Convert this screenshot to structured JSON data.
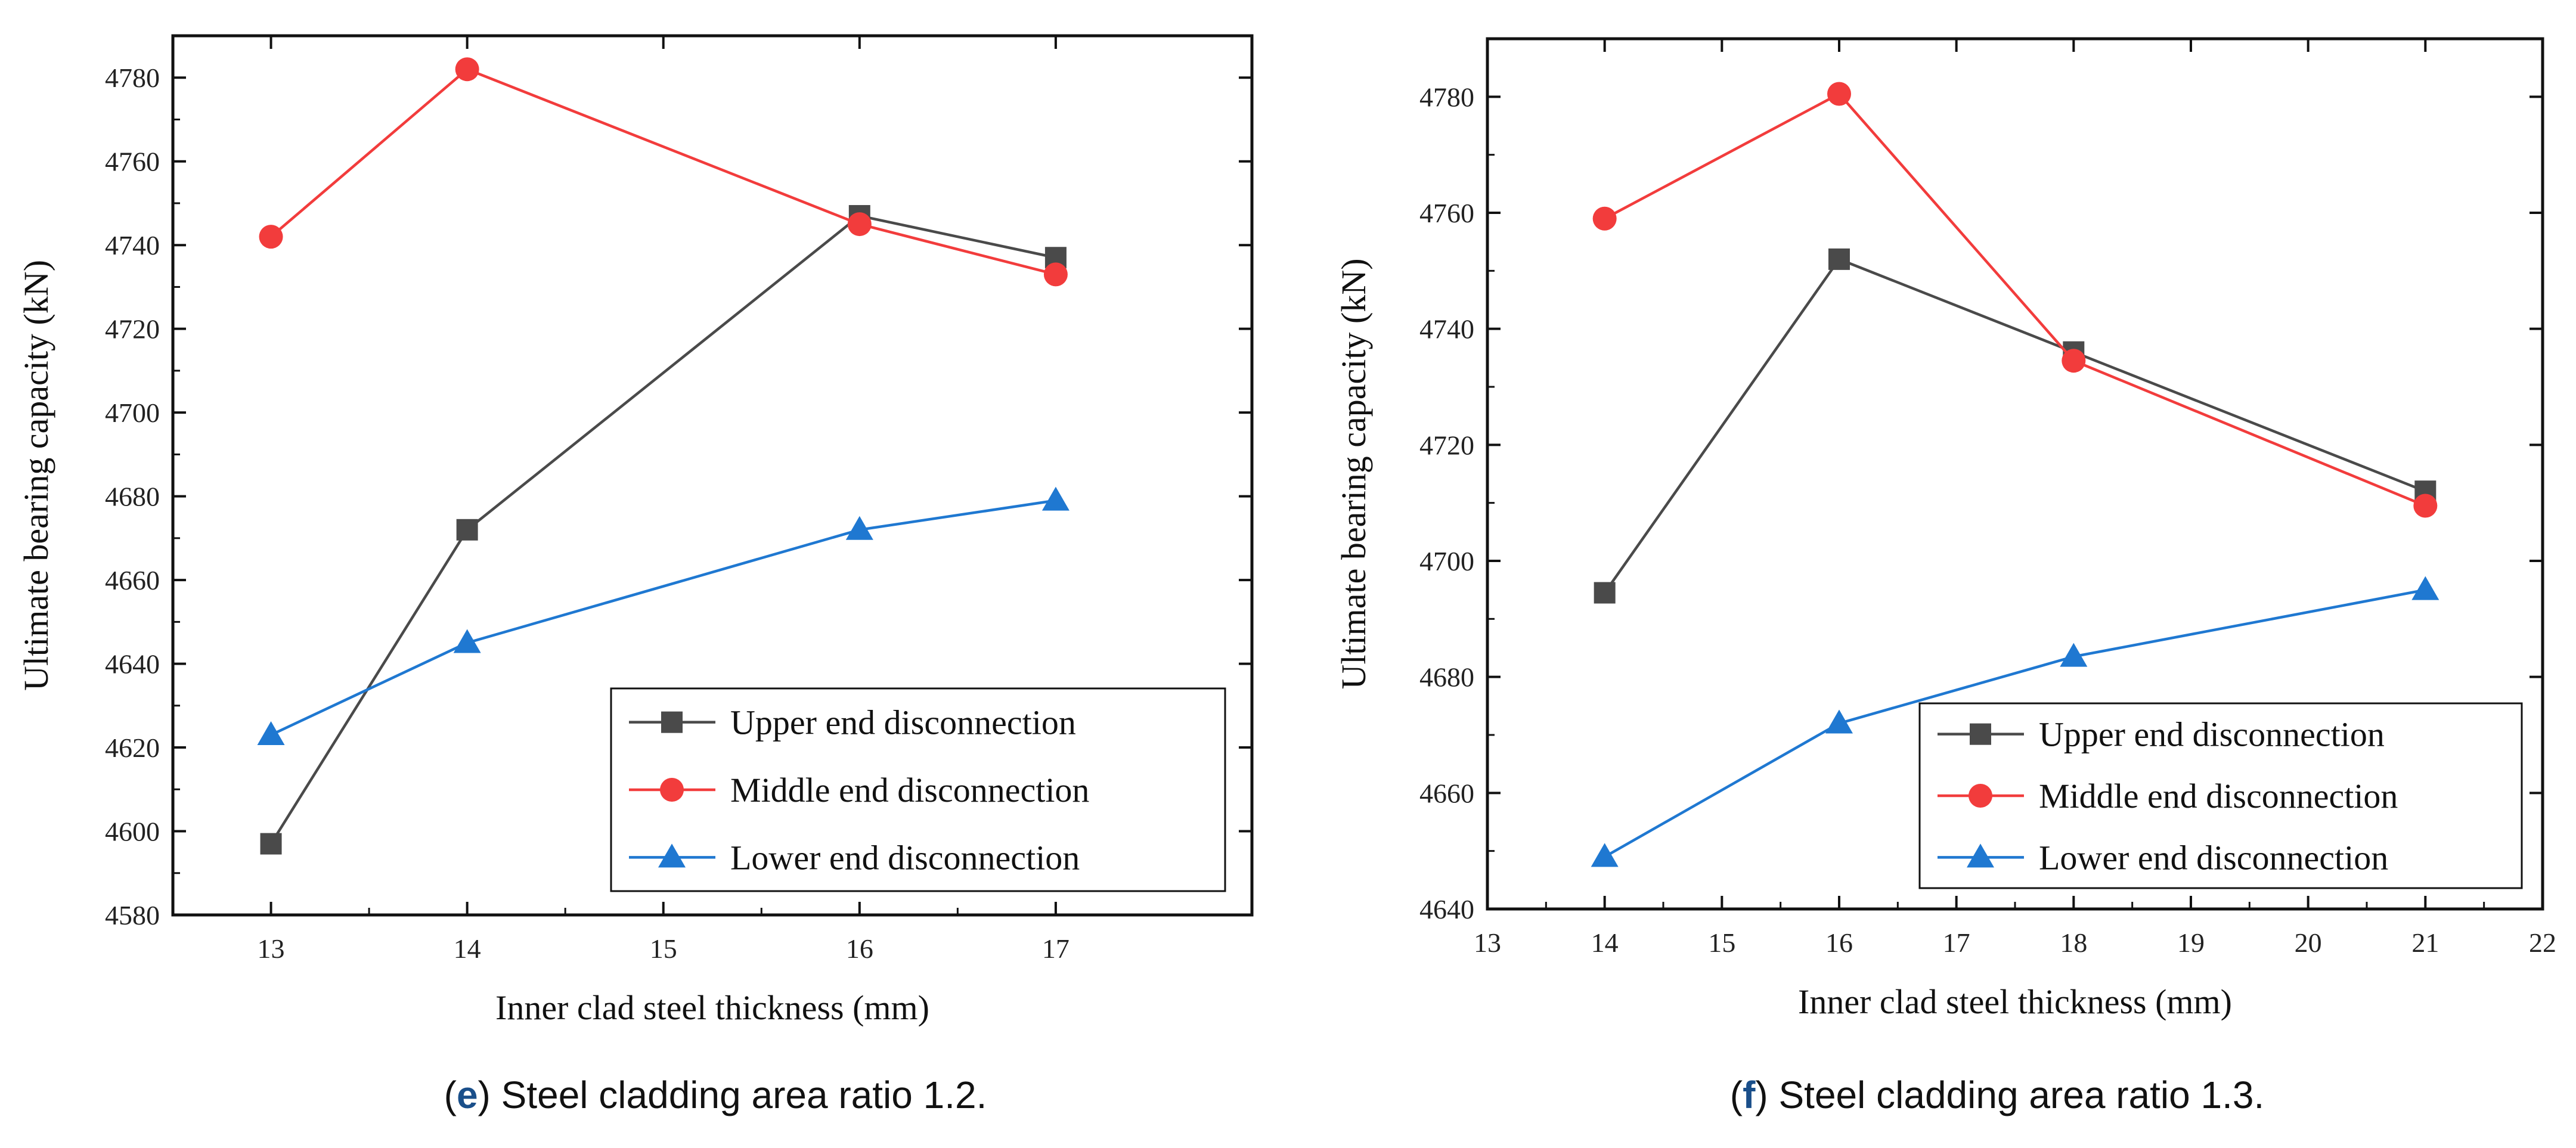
{
  "chart_data": [
    {
      "type": "line",
      "caption_letter": "e",
      "caption_text": " Steel cladding area ratio 1.2.",
      "xlabel": "Inner clad steel thickness (mm)",
      "ylabel": "Ultimate bearing capacity (kN)",
      "categories": [
        "13",
        "14",
        "15",
        "16",
        "17"
      ],
      "ylim": [
        4580,
        4790
      ],
      "yticks": [
        4580,
        4600,
        4620,
        4640,
        4660,
        4680,
        4700,
        4720,
        4740,
        4760,
        4780
      ],
      "series": [
        {
          "name": "Upper end disconnection",
          "color": "#4a4a4a",
          "marker": "square",
          "x": [
            "13",
            "14",
            "16",
            "17"
          ],
          "values": [
            4597,
            4672,
            4747,
            4737
          ]
        },
        {
          "name": "Middle end disconnection",
          "color": "#f23c3c",
          "marker": "circle",
          "x": [
            "13",
            "14",
            "16",
            "17"
          ],
          "values": [
            4742,
            4782,
            4745,
            4733
          ]
        },
        {
          "name": "Lower end disconnection",
          "color": "#1f78d1",
          "marker": "triangle",
          "x": [
            "13",
            "14",
            "16",
            "17"
          ],
          "values": [
            4623,
            4645,
            4672,
            4679
          ]
        }
      ],
      "legend_position": "bottom-right"
    },
    {
      "type": "line",
      "caption_letter": "f",
      "caption_text": " Steel cladding area ratio 1.3.",
      "xlabel": "Inner clad steel thickness (mm)",
      "ylabel": "Ultimate bearing capacity (kN)",
      "categories": [
        "13",
        "14",
        "15",
        "16",
        "17",
        "18",
        "19",
        "20",
        "21",
        "22"
      ],
      "ylim": [
        4640,
        4790
      ],
      "yticks": [
        4640,
        4660,
        4680,
        4700,
        4720,
        4740,
        4760,
        4780
      ],
      "series": [
        {
          "name": "Upper end disconnection",
          "color": "#4a4a4a",
          "marker": "square",
          "x": [
            "14",
            "16",
            "18",
            "21"
          ],
          "values": [
            4694.5,
            4752,
            4736,
            4712
          ]
        },
        {
          "name": "Middle end disconnection",
          "color": "#f23c3c",
          "marker": "circle",
          "x": [
            "14",
            "16",
            "18",
            "21"
          ],
          "values": [
            4759,
            4780.5,
            4734.5,
            4709.5
          ]
        },
        {
          "name": "Lower end disconnection",
          "color": "#1f78d1",
          "marker": "triangle",
          "x": [
            "14",
            "16",
            "18",
            "21"
          ],
          "values": [
            4649,
            4672,
            4683.5,
            4695
          ]
        }
      ],
      "legend_position": "bottom-right"
    }
  ]
}
